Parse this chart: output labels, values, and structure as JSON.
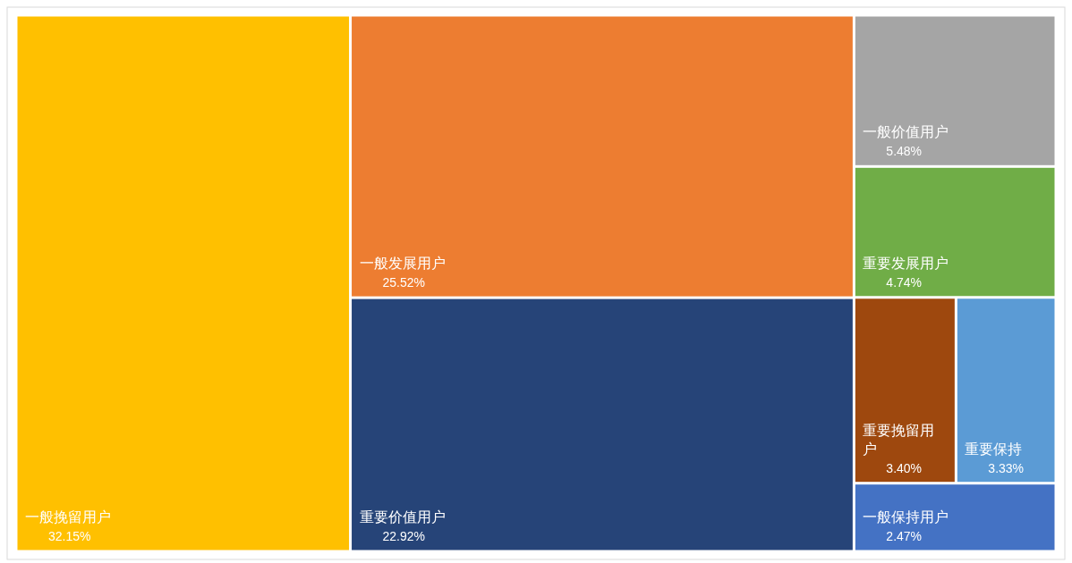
{
  "chart_data": {
    "type": "other",
    "categories": [
      "一般挽留用户",
      "一般发展用户",
      "重要价值用户",
      "一般价值用户",
      "重要发展用户",
      "重要挽留用户",
      "重要保持",
      "一般保持用户"
    ],
    "values": [
      32.15,
      25.52,
      22.92,
      5.48,
      4.74,
      3.4,
      3.33,
      2.47
    ],
    "value_labels": [
      "32.15%",
      "25.52%",
      "22.92%",
      "5.48%",
      "4.74%",
      "3.40%",
      "3.33%",
      "2.47%"
    ],
    "colors": [
      "#ffc000",
      "#ed7d31",
      "#264478",
      "#a5a5a5",
      "#70ad47",
      "#9e480e",
      "#5b9bd5",
      "#4472c4"
    ]
  }
}
